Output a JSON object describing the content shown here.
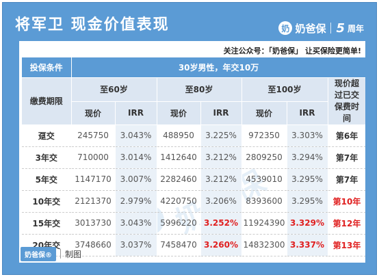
{
  "title": "将军卫 现金价值表现",
  "brand": {
    "name": "奶爸保",
    "logo_glyph": "奶",
    "anniversary_num": "5",
    "anniversary_text": "周年"
  },
  "notice": "关注公众号：「奶爸保」 让买保险更简单!",
  "table": {
    "condition_label": "投保条件",
    "condition_value": "30岁男性，年交10万",
    "period_label": "缴费期限",
    "ages": [
      "至60岁",
      "至80岁",
      "至100岁"
    ],
    "sub_cash": "现价",
    "sub_irr": "IRR",
    "exceed_label": "现价超过已交保费时间",
    "rows": [
      {
        "period": "趸交",
        "c60": "245750",
        "i60": "3.043%",
        "c80": "488950",
        "i80": "3.225%",
        "c100": "972350",
        "i100": "3.303%",
        "year": "第6年"
      },
      {
        "period": "3年交",
        "c60": "710000",
        "i60": "3.014%",
        "c80": "1412640",
        "i80": "3.212%",
        "c100": "2809250",
        "i100": "3.294%",
        "year": "第7年"
      },
      {
        "period": "5年交",
        "c60": "1147170",
        "i60": "3.007%",
        "c80": "2282460",
        "i80": "3.212%",
        "c100": "4539010",
        "i100": "3.295%",
        "year": "第7年"
      },
      {
        "period": "10年交",
        "c60": "2121370",
        "i60": "2.979%",
        "c80": "4220750",
        "i80": "3.206%",
        "c100": "8393600",
        "i100": "3.295%",
        "year": "第10年"
      },
      {
        "period": "15年交",
        "c60": "3013730",
        "i60": "3.043%",
        "c80": "5996220",
        "i80": "3.252%",
        "c100": "11924390",
        "i100": "3.329%",
        "year": "第12年"
      },
      {
        "period": "20年交",
        "c60": "3748660",
        "i60": "3.037%",
        "c80": "7458470",
        "i80": "3.260%",
        "c100": "14832300",
        "i100": "3.337%",
        "year": "第13年"
      }
    ]
  },
  "watermark": "奶爸保",
  "footer": {
    "logo": "奶爸保®",
    "text": "制图"
  },
  "colors": {
    "frame": "#5b9bd5",
    "header_light": "#dce6f2",
    "highlight_red": "#e02020"
  }
}
